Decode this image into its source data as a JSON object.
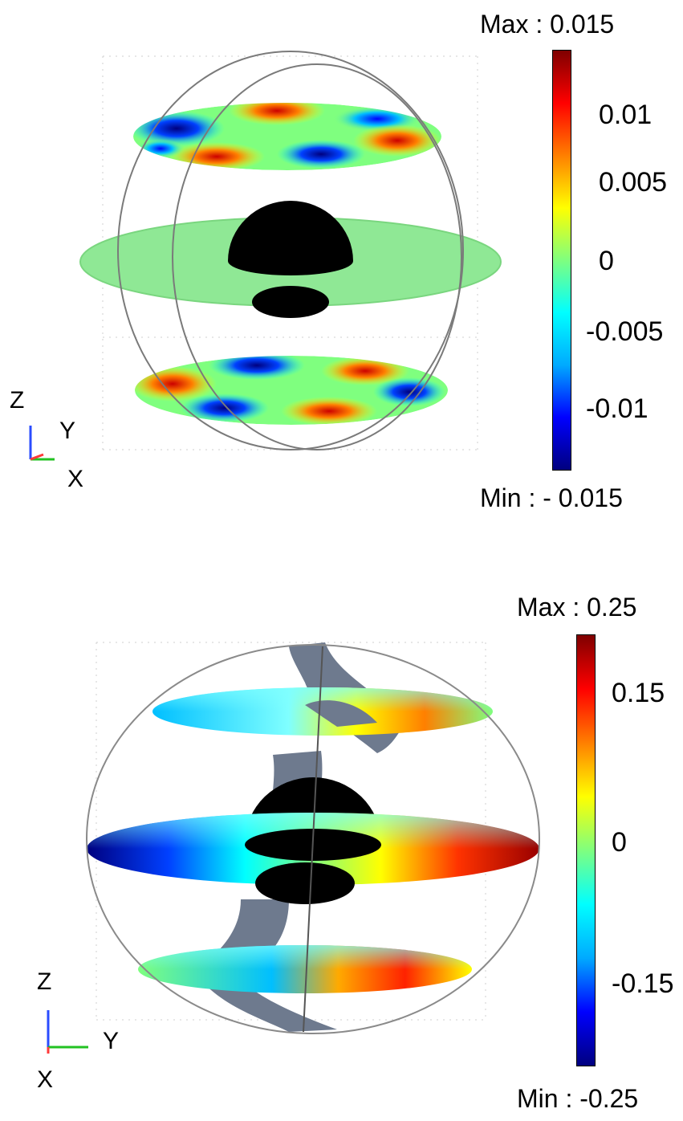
{
  "panels": [
    {
      "colorbar": {
        "max_label": "Max : 0.015",
        "min_label": "Min : - 0.015",
        "ticks": [
          "0.01",
          "0.005",
          "0",
          "-0.005",
          "-0.01"
        ]
      },
      "triad": {
        "z": "Z",
        "y": "Y",
        "x": "X"
      }
    },
    {
      "colorbar": {
        "max_label": "Max : 0.25",
        "min_label": "Min : -0.25",
        "ticks": [
          "0.15",
          "0",
          "-0.15"
        ]
      },
      "triad": {
        "z": "Z",
        "y": "Y",
        "x": "X"
      }
    }
  ],
  "colormap": [
    "#00007f",
    "#0000ff",
    "#00aaff",
    "#00ffff",
    "#7fff7f",
    "#ffff00",
    "#ff7f00",
    "#ff0000",
    "#7f0000"
  ]
}
